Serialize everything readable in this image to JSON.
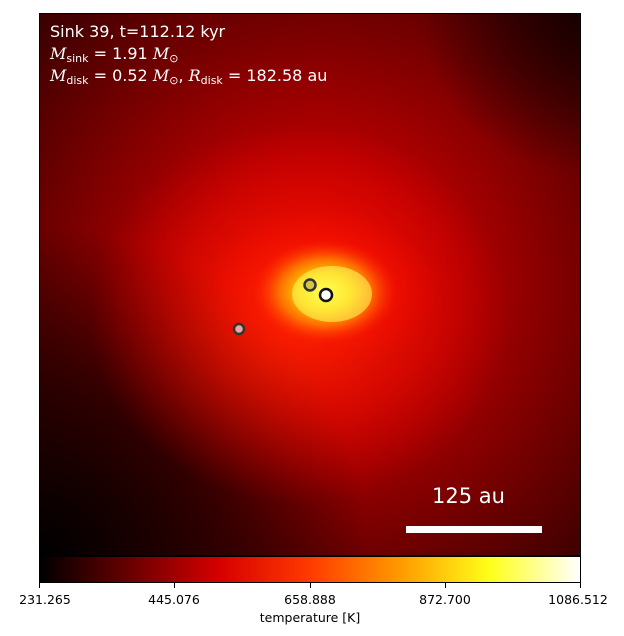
{
  "annotation": {
    "line1": "Sink 39, t=112.12 kyr",
    "msink_symbol": "M",
    "msink_sub": "sink",
    "msink_value": " = 1.91 ",
    "msun_symbol": "M",
    "msun_sub": "⊙",
    "mdisk_symbol": "M",
    "mdisk_sub": "disk",
    "mdisk_value": " = 0.52 ",
    "rdisk_symbol": "R",
    "rdisk_sub": "disk",
    "rdisk_value": " = 182.58 au"
  },
  "scalebar": {
    "label": "125 au"
  },
  "colorbar": {
    "label": "temperature [K]",
    "ticks": [
      "231.265",
      "445.076",
      "658.888",
      "872.700",
      "1086.512"
    ],
    "colormap": [
      "#000000",
      "#6a0000",
      "#d60000",
      "#ff3a00",
      "#ff9a00",
      "#ffff1a",
      "#ffffff"
    ]
  },
  "sinks": [
    {
      "name": "sink-1",
      "fill": "#e8a8a0"
    },
    {
      "name": "sink-2",
      "fill": "#d4c44a"
    },
    {
      "name": "sink-3",
      "fill": "#ffffff"
    }
  ]
}
